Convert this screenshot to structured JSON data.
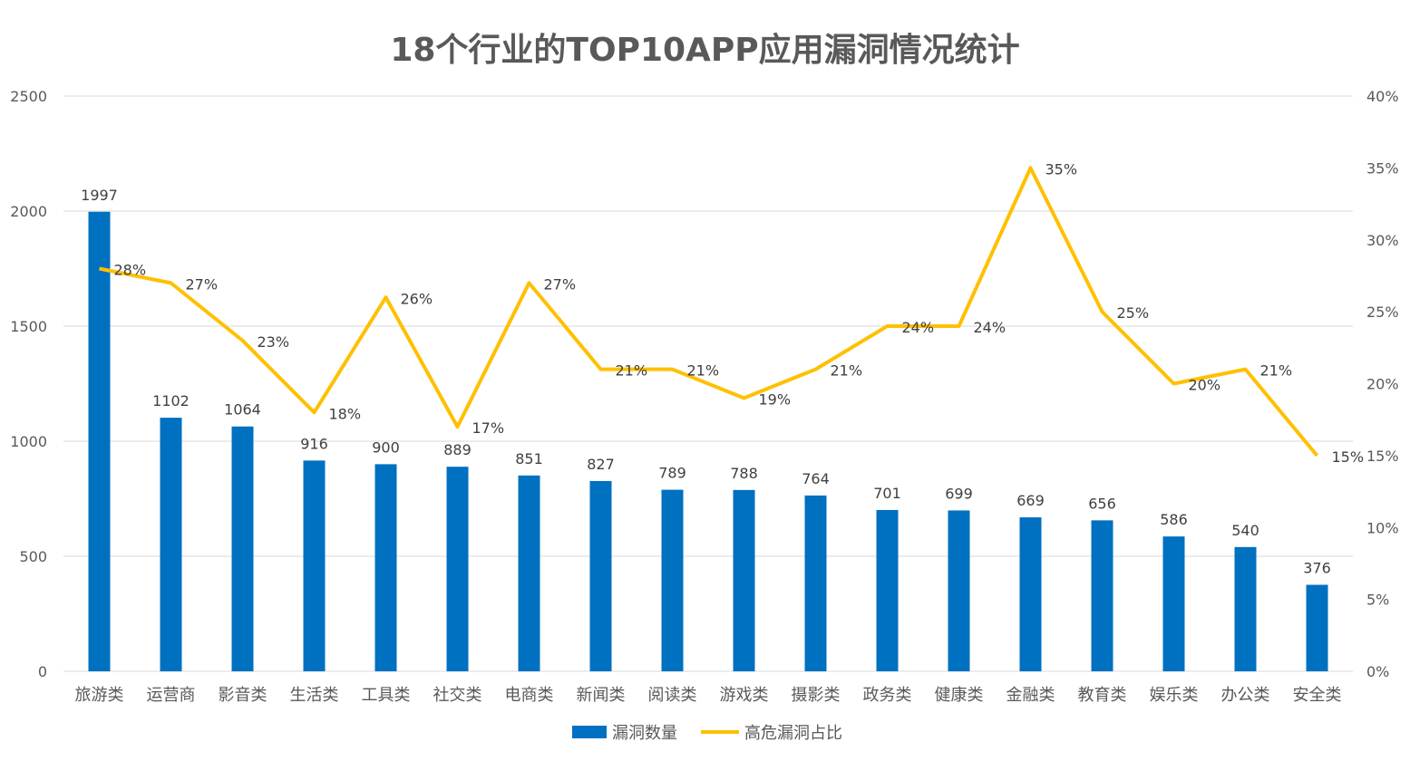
{
  "chart_data": {
    "type": "bar",
    "title": "18个行业的TOP10APP应用漏洞情况统计",
    "categories": [
      "旅游类",
      "运营商",
      "影音类",
      "生活类",
      "工具类",
      "社交类",
      "电商类",
      "新闻类",
      "阅读类",
      "游戏类",
      "摄影类",
      "政务类",
      "健康类",
      "金融类",
      "教育类",
      "娱乐类",
      "办公类",
      "安全类"
    ],
    "series": [
      {
        "name": "漏洞数量",
        "type": "bar",
        "axis": "left",
        "values": [
          1997,
          1102,
          1064,
          916,
          900,
          889,
          851,
          827,
          789,
          788,
          764,
          701,
          699,
          669,
          656,
          586,
          540,
          376
        ]
      },
      {
        "name": "高危漏洞占比",
        "type": "line",
        "axis": "right",
        "values": [
          28,
          27,
          23,
          18,
          26,
          17,
          27,
          21,
          21,
          19,
          21,
          24,
          24,
          35,
          25,
          20,
          21,
          15
        ]
      }
    ],
    "y_left": {
      "min": 0,
      "max": 2500,
      "ticks": [
        "0",
        "500",
        "1000",
        "1500",
        "2000",
        "2500"
      ]
    },
    "y_right": {
      "min": 0,
      "max": 40,
      "ticks": [
        "0%",
        "5%",
        "10%",
        "15%",
        "20%",
        "25%",
        "30%",
        "35%",
        "40%"
      ]
    },
    "grid": true,
    "legend": "bottom",
    "colors": {
      "bar": "#0070C0",
      "line": "#FFC000",
      "grid": "#D9D9D9",
      "text": "#595959"
    }
  }
}
